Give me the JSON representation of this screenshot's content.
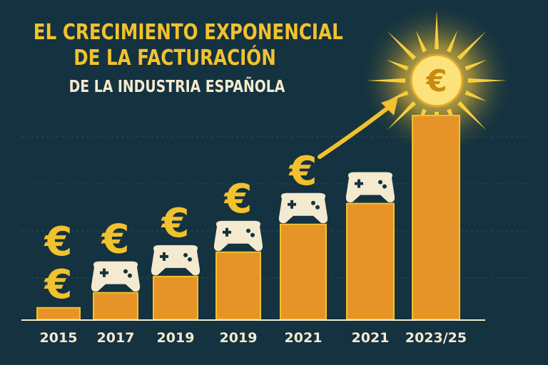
{
  "header": {
    "title_line1": "EL CRECIMIENTO EXPONENCIAL",
    "title_line2": "DE LA FACTURACIÓN",
    "title_line3": "DE LA INDUSTRIA ESPAÑOLA"
  },
  "icons": {
    "currency": "euro-icon",
    "controller": "gamepad-icon",
    "sun": "sun-burst-icon",
    "trend": "arrow-up-right-icon"
  },
  "colors": {
    "background": "#14323f",
    "bar": "#e69428",
    "bar_outline": "#f2c12e",
    "accent": "#f2c12e",
    "controller": "#f3ead0"
  },
  "chart_data": {
    "type": "bar",
    "categories": [
      "2015",
      "2017",
      "2019",
      "2019",
      "2021",
      "2021",
      "2023/25"
    ],
    "values": [
      1,
      2.3,
      3.7,
      5.8,
      8.2,
      10,
      17.6
    ],
    "ylim": [
      0,
      20
    ],
    "grid": true,
    "euro_symbols_per_bar": [
      2,
      1,
      1,
      1,
      1,
      0,
      1
    ],
    "controller_per_bar": [
      false,
      true,
      true,
      true,
      true,
      true,
      false
    ]
  }
}
